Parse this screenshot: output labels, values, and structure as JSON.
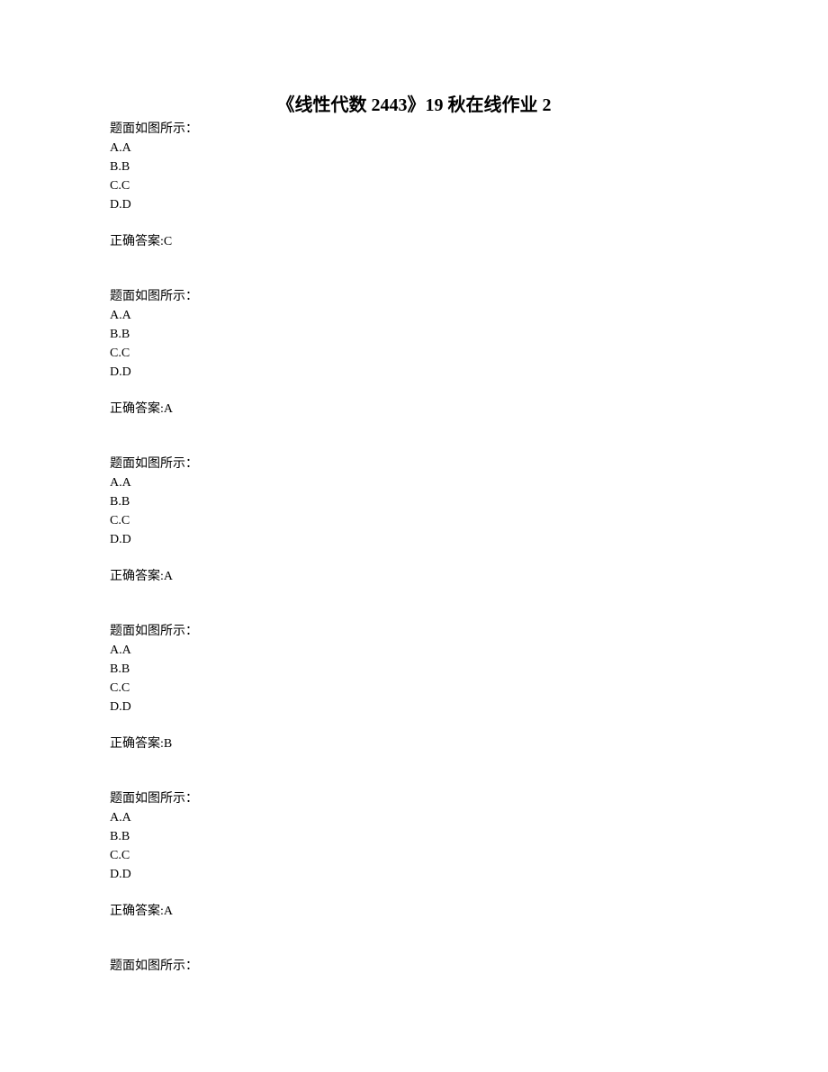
{
  "title": "《线性代数 2443》19 秋在线作业 2",
  "questions": [
    {
      "prompt": "题面如图所示：",
      "options": [
        "A.A",
        "B.B",
        "C.C",
        "D.D"
      ],
      "answer": "正确答案:C"
    },
    {
      "prompt": "题面如图所示：",
      "options": [
        "A.A",
        "B.B",
        "C.C",
        "D.D"
      ],
      "answer": "正确答案:A"
    },
    {
      "prompt": "题面如图所示：",
      "options": [
        "A.A",
        "B.B",
        "C.C",
        "D.D"
      ],
      "answer": "正确答案:A"
    },
    {
      "prompt": "题面如图所示：",
      "options": [
        "A.A",
        "B.B",
        "C.C",
        "D.D"
      ],
      "answer": "正确答案:B"
    },
    {
      "prompt": "题面如图所示：",
      "options": [
        "A.A",
        "B.B",
        "C.C",
        "D.D"
      ],
      "answer": "正确答案:A"
    }
  ],
  "lastPrompt": "题面如图所示："
}
